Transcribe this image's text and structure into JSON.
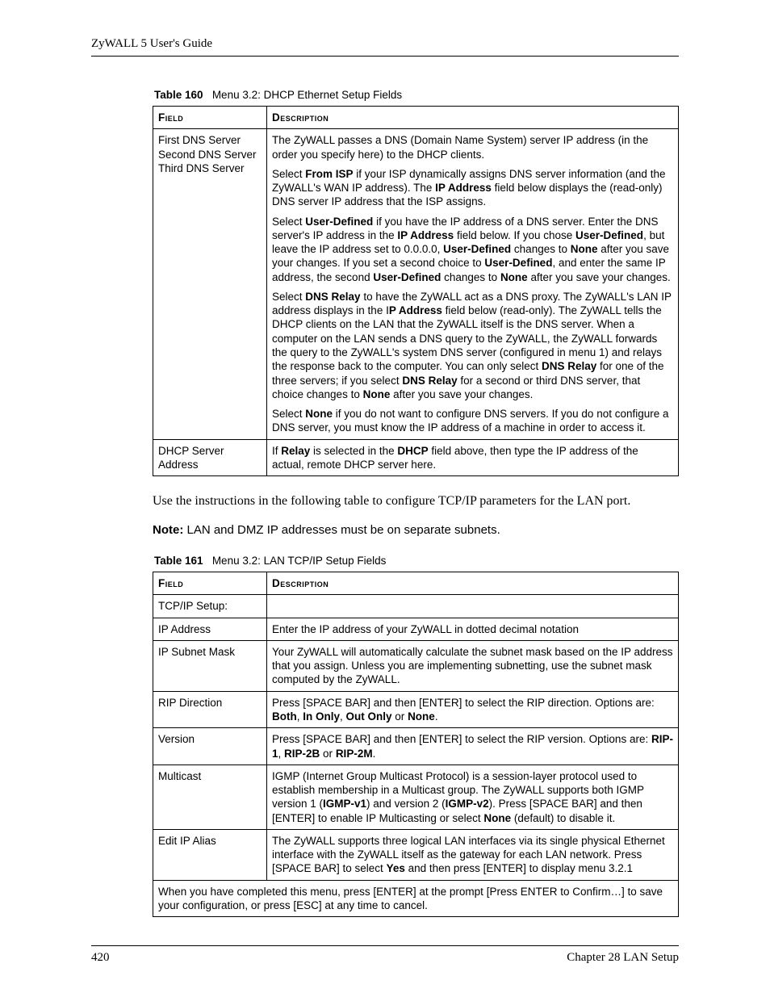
{
  "header": {
    "running_head": "ZyWALL 5 User's Guide"
  },
  "table160": {
    "caption_label": "Table 160",
    "caption_text": "Menu 3.2: DHCP Ethernet Setup Fields",
    "head_field": "Field",
    "head_desc": "Description",
    "row1_field_l1": "First DNS Server",
    "row1_field_l2": "Second DNS Server",
    "row1_field_l3": "Third DNS Server",
    "row1_p1_a": "The ZyWALL passes a DNS (Domain Name System) server IP address (in the order you specify here) to the DHCP clients.",
    "row1_p2_a": "Select ",
    "row1_p2_b": "From ISP",
    "row1_p2_c": " if your ISP dynamically assigns DNS server information (and the ZyWALL's WAN IP address). The ",
    "row1_p2_d": "IP Address",
    "row1_p2_e": " field below displays the (read-only) DNS server IP address that the ISP assigns.",
    "row1_p3_a": "Select ",
    "row1_p3_b": "User-Defined",
    "row1_p3_c": " if you have the IP address of a DNS server. Enter the DNS server's IP address in the ",
    "row1_p3_d": "IP Address",
    "row1_p3_e": " field below. If you chose ",
    "row1_p3_f": "User-Defined",
    "row1_p3_g": ", but leave the IP address set to 0.0.0.0, ",
    "row1_p3_h": "User-Defined",
    "row1_p3_i": " changes to ",
    "row1_p3_j": "None",
    "row1_p3_k": " after you save your changes. If you set a second choice to ",
    "row1_p3_l": "User-Defined",
    "row1_p3_m": ", and enter the same IP address, the second ",
    "row1_p3_n": "User-Defined",
    "row1_p3_o": " changes to ",
    "row1_p3_p": "None",
    "row1_p3_q": " after you save your changes.",
    "row1_p4_a": "Select ",
    "row1_p4_b": "DNS Relay",
    "row1_p4_c": " to have the ZyWALL act as a DNS proxy. The ZyWALL's LAN IP address displays in the I",
    "row1_p4_d": "P Address",
    "row1_p4_e": " field below (read-only). The ZyWALL tells the DHCP clients on the LAN that the ZyWALL itself is the DNS server. When a computer on the LAN sends a DNS query to the ZyWALL, the ZyWALL forwards the query to the ZyWALL's system DNS server (configured in menu 1) and relays the response back to the computer. You can only select ",
    "row1_p4_f": "DNS Relay",
    "row1_p4_g": " for one of the three servers; if you select ",
    "row1_p4_h": "DNS Relay",
    "row1_p4_i": " for a second or third DNS server, that choice changes to ",
    "row1_p4_j": "None",
    "row1_p4_k": " after you save your changes.",
    "row1_p5_a": "Select ",
    "row1_p5_b": "None",
    "row1_p5_c": " if you do not want to configure DNS servers. If you do not configure a DNS server, you must know the IP address of a machine in order to access it.",
    "row2_field": "DHCP Server Address",
    "row2_a": "If ",
    "row2_b": "Relay",
    "row2_c": " is selected in the ",
    "row2_d": "DHCP",
    "row2_e": " field above, then type the IP address of the actual, remote DHCP server here."
  },
  "body": {
    "para1": "Use the instructions in the following table to configure TCP/IP parameters for the LAN port.",
    "note_label": "Note:",
    "note_text": " LAN and DMZ IP addresses must be on separate subnets."
  },
  "table161": {
    "caption_label": "Table 161",
    "caption_text": "Menu 3.2: LAN TCP/IP Setup Fields",
    "head_field": "Field",
    "head_desc": "Description",
    "r1_field": "TCP/IP Setup:",
    "r1_desc": "",
    "r2_field": "IP Address",
    "r2_desc": "Enter the IP address of your ZyWALL in dotted decimal notation",
    "r3_field": "IP Subnet Mask",
    "r3_desc": "Your ZyWALL will automatically calculate the subnet mask based on the IP address that you assign. Unless you are implementing subnetting, use the subnet mask computed by the ZyWALL.",
    "r4_field": "RIP Direction",
    "r4_a": "Press [SPACE BAR] and then [ENTER] to select the RIP direction. Options are: ",
    "r4_b": "Both",
    "r4_c": ", ",
    "r4_d": "In Only",
    "r4_e": ", ",
    "r4_f": "Out Only",
    "r4_g": " or ",
    "r4_h": "None",
    "r4_i": ".",
    "r5_field": "Version",
    "r5_a": "Press [SPACE BAR] and then [ENTER] to select the RIP version. Options are: ",
    "r5_b": "RIP-1",
    "r5_c": ", ",
    "r5_d": "RIP-2B",
    "r5_e": " or ",
    "r5_f": "RIP-2M",
    "r5_g": ".",
    "r6_field": "Multicast",
    "r6_a": "IGMP (Internet Group Multicast Protocol) is a session-layer protocol used to establish membership in a Multicast group. The ZyWALL supports both IGMP version 1 (",
    "r6_b": "IGMP-v1",
    "r6_c": ") and version 2 (",
    "r6_d": "IGMP-v2",
    "r6_e": "). Press [SPACE BAR] and then [ENTER] to enable IP Multicasting or select ",
    "r6_f": "None",
    "r6_g": " (default) to disable it.",
    "r7_field": "Edit IP Alias",
    "r7_a": "The ZyWALL supports three logical LAN interfaces via its single physical Ethernet interface with the ZyWALL itself as the gateway for each LAN network. Press [SPACE BAR] to select ",
    "r7_b": "Yes",
    "r7_c": " and then press [ENTER] to display menu 3.2.1",
    "footrow": "When you have completed this menu, press [ENTER] at the prompt [Press ENTER to Confirm…] to save your configuration, or press [ESC] at any time to cancel."
  },
  "footer": {
    "page_number": "420",
    "chapter": "Chapter 28 LAN Setup"
  }
}
